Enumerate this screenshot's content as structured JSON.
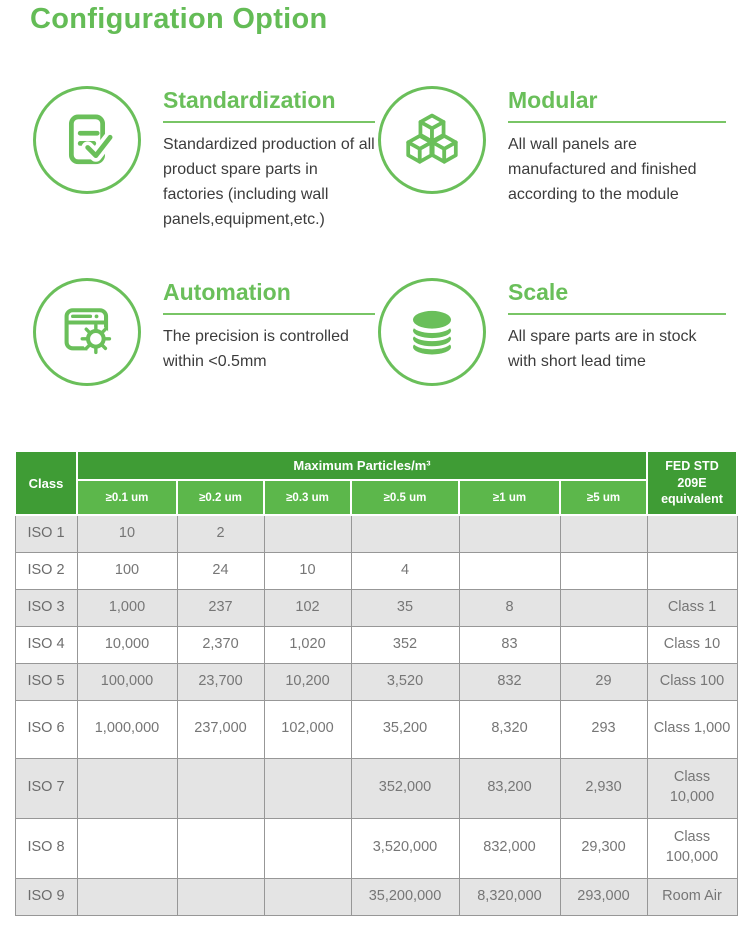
{
  "page": {
    "title": "Configuration Option"
  },
  "colors": {
    "accent_green": "#6abf5a",
    "title_green": "#64bc56",
    "table_header_dark_green": "#3f9c35",
    "table_header_light_green": "#5cb74b",
    "table_alt_row_gray": "#e4e4e4"
  },
  "features": [
    {
      "icon": "document-check-icon",
      "title": "Standardization",
      "description": "Standardized production of all product spare parts in factories (including wall panels,equipment,etc.)"
    },
    {
      "icon": "cubes-icon",
      "title": "Modular",
      "description": "All wall panels are manufactured and finished according to the module"
    },
    {
      "icon": "window-gear-icon",
      "title": "Automation",
      "description": "The precision is controlled within <0.5mm"
    },
    {
      "icon": "stack-icon",
      "title": "Scale",
      "description": "All spare parts are in stock with short lead time"
    }
  ],
  "table": {
    "class_header": "Class",
    "group_header": "Maximum  Particles/m³",
    "fed_header": "FED STD 209E equivalent",
    "particle_columns": [
      "≥0.1 um",
      "≥0.2 um",
      "≥0.3 um",
      "≥0.5 um",
      "≥1 um",
      "≥5 um"
    ],
    "rows": [
      {
        "class": "ISO 1",
        "values": [
          "10",
          "2",
          "",
          "",
          "",
          ""
        ],
        "fed": ""
      },
      {
        "class": "ISO 2",
        "values": [
          "100",
          "24",
          "10",
          "4",
          "",
          ""
        ],
        "fed": ""
      },
      {
        "class": "ISO 3",
        "values": [
          "1,000",
          "237",
          "102",
          "35",
          "8",
          ""
        ],
        "fed": "Class 1"
      },
      {
        "class": "ISO 4",
        "values": [
          "10,000",
          "2,370",
          "1,020",
          "352",
          "83",
          ""
        ],
        "fed": "Class 10"
      },
      {
        "class": "ISO 5",
        "values": [
          "100,000",
          "23,700",
          "10,200",
          "3,520",
          "832",
          "29"
        ],
        "fed": "Class 100"
      },
      {
        "class": "ISO 6",
        "values": [
          "1,000,000",
          "237,000",
          "102,000",
          "35,200",
          "8,320",
          "293"
        ],
        "fed": "Class 1,000"
      },
      {
        "class": "ISO 7",
        "values": [
          "",
          "",
          "",
          "352,000",
          "83,200",
          "2,930"
        ],
        "fed": "Class 10,000"
      },
      {
        "class": "ISO 8",
        "values": [
          "",
          "",
          "",
          "3,520,000",
          "832,000",
          "29,300"
        ],
        "fed": "Class 100,000"
      },
      {
        "class": "ISO 9",
        "values": [
          "",
          "",
          "",
          "35,200,000",
          "8,320,000",
          "293,000"
        ],
        "fed": "Room Air"
      }
    ]
  }
}
